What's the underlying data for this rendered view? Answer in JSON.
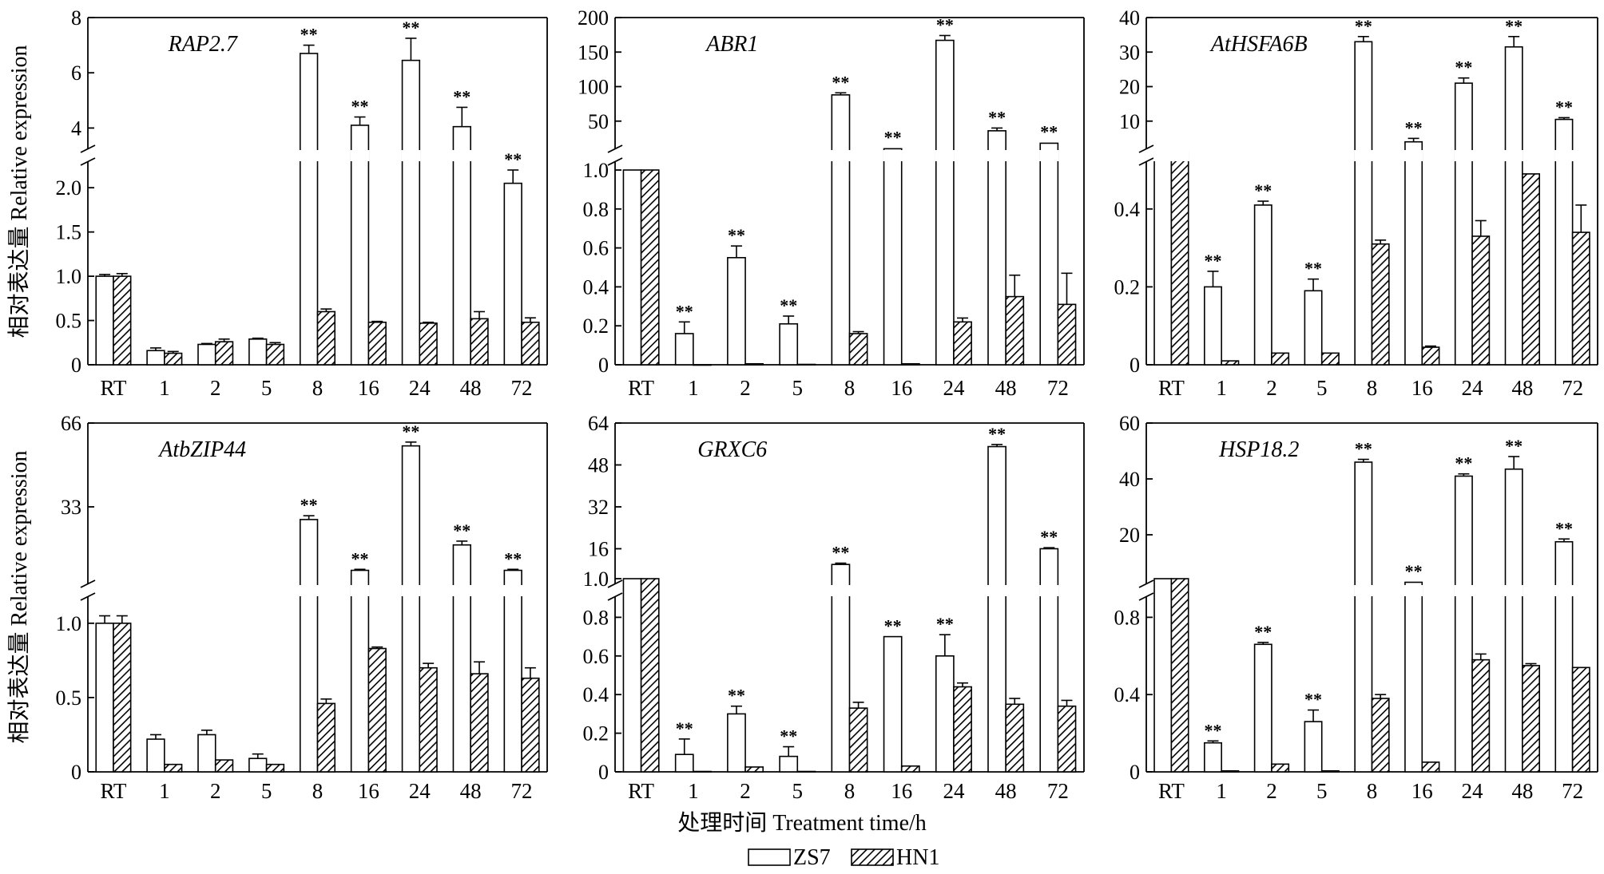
{
  "shared": {
    "ylabel": "相对表达量 Relative expression",
    "xlabel": "处理时间 Treatment time/h",
    "categories": [
      "RT",
      "1",
      "2",
      "5",
      "8",
      "16",
      "24",
      "48",
      "72"
    ],
    "series_names": [
      "ZS7",
      "HN1"
    ],
    "significance_mark": "**",
    "colors": {
      "zs7_fill": "#ffffff",
      "hn1_hatch": "#000000",
      "axis": "#000000"
    }
  },
  "chart_data": [
    {
      "type": "bar",
      "title": "RAP2.7",
      "categories": [
        "RT",
        "1",
        "2",
        "5",
        "8",
        "16",
        "24",
        "48",
        "72"
      ],
      "lower_ylim": [
        0,
        2.2
      ],
      "lower_ticks": [
        0,
        0.5,
        1.0,
        1.5,
        2.0
      ],
      "lower_tick_labels": [
        "0",
        "0.5",
        "1.0",
        "1.5",
        "2.0"
      ],
      "upper_ylim": [
        3,
        8
      ],
      "upper_ticks": [
        4,
        6,
        8
      ],
      "upper_tick_labels": [
        "4",
        "6",
        "8"
      ],
      "series": [
        {
          "name": "ZS7",
          "values": [
            1.0,
            0.16,
            0.23,
            0.29,
            6.7,
            4.1,
            6.45,
            4.05,
            2.05
          ],
          "errors": [
            0.02,
            0.03,
            0.01,
            0.01,
            0.3,
            0.3,
            0.8,
            0.7,
            0.15
          ]
        },
        {
          "name": "HN1",
          "values": [
            1.0,
            0.13,
            0.26,
            0.23,
            0.6,
            0.48,
            0.47,
            0.52,
            0.48
          ],
          "errors": [
            0.03,
            0.02,
            0.03,
            0.02,
            0.03,
            0.01,
            0.01,
            0.08,
            0.05
          ]
        }
      ],
      "significance": [
        "",
        "",
        "",
        "",
        "**",
        "**",
        "**",
        "**",
        "**"
      ]
    },
    {
      "type": "bar",
      "title": "ABR1",
      "categories": [
        "RT",
        "1",
        "2",
        "5",
        "8",
        "16",
        "24",
        "48",
        "72"
      ],
      "lower_ylim": [
        0,
        1.0
      ],
      "lower_ticks": [
        0,
        0.2,
        0.4,
        0.6,
        0.8,
        1.0
      ],
      "lower_tick_labels": [
        "0",
        "0.2",
        "0.4",
        "0.6",
        "0.8",
        "1.0"
      ],
      "upper_ylim": [
        0,
        200
      ],
      "upper_ticks": [
        50,
        100,
        150,
        200
      ],
      "upper_tick_labels": [
        "50",
        "100",
        "150",
        "200"
      ],
      "series": [
        {
          "name": "ZS7",
          "values": [
            1.0,
            0.16,
            0.55,
            0.21,
            88,
            10,
            167,
            36,
            18
          ],
          "errors": [
            0,
            0.06,
            0.06,
            0.04,
            3,
            1,
            7,
            4,
            1
          ]
        },
        {
          "name": "HN1",
          "values": [
            1.0,
            0,
            0.005,
            0.002,
            0.16,
            0.005,
            0.22,
            0.35,
            0.31
          ],
          "errors": [
            0,
            0,
            0,
            0,
            0.01,
            0,
            0.02,
            0.11,
            0.16
          ]
        }
      ],
      "significance": [
        "",
        "**",
        "**",
        "**",
        "**",
        "**",
        "**",
        "**",
        "**"
      ]
    },
    {
      "type": "bar",
      "title": "AtHSFA6B",
      "categories": [
        "RT",
        "1",
        "2",
        "5",
        "8",
        "16",
        "24",
        "48",
        "72"
      ],
      "lower_ylim": [
        0,
        0.5
      ],
      "lower_ticks": [
        0,
        0.2,
        0.4
      ],
      "lower_tick_labels": [
        "0",
        "0.2",
        "0.4"
      ],
      "upper_ylim": [
        0,
        40
      ],
      "upper_ticks": [
        10,
        20,
        30,
        40
      ],
      "upper_tick_labels": [
        "10",
        "20",
        "30",
        "40"
      ],
      "series": [
        {
          "name": "ZS7",
          "values": [
            1.0,
            0.2,
            0.41,
            0.19,
            33,
            4,
            21,
            31.5,
            10.5
          ],
          "errors": [
            0,
            0.04,
            0.01,
            0.03,
            1.5,
            1,
            1.5,
            3,
            0.5
          ]
        },
        {
          "name": "HN1",
          "values": [
            1.0,
            0.01,
            0.03,
            0.03,
            0.31,
            0.045,
            0.33,
            0.49,
            0.34
          ],
          "errors": [
            0,
            0.002,
            0.002,
            0.002,
            0.01,
            0.003,
            0.04,
            0,
            0.07
          ]
        }
      ],
      "significance": [
        "",
        "**",
        "**",
        "**",
        "**",
        "**",
        "**",
        "**",
        "**"
      ]
    },
    {
      "type": "bar",
      "title": "AtbZIP44",
      "categories": [
        "RT",
        "1",
        "2",
        "5",
        "8",
        "16",
        "24",
        "48",
        "72"
      ],
      "lower_ylim": [
        0,
        1.3
      ],
      "lower_ticks": [
        0,
        0.5,
        1.0
      ],
      "lower_tick_labels": [
        "0",
        "0.5",
        "1.0"
      ],
      "upper_ylim": [
        0,
        66
      ],
      "upper_ticks": [
        33,
        66
      ],
      "upper_tick_labels": [
        "33",
        "66"
      ],
      "series": [
        {
          "name": "ZS7",
          "values": [
            1.0,
            0.22,
            0.25,
            0.09,
            28,
            8,
            57,
            18,
            8
          ],
          "errors": [
            0.05,
            0.03,
            0.03,
            0.03,
            1.5,
            0.4,
            1.5,
            1.5,
            0.4
          ]
        },
        {
          "name": "HN1",
          "values": [
            1.0,
            0.05,
            0.08,
            0.05,
            0.46,
            0.83,
            0.7,
            0.66,
            0.63
          ],
          "errors": [
            0.05,
            0.005,
            0.005,
            0.005,
            0.03,
            0.01,
            0.03,
            0.08,
            0.07
          ]
        }
      ],
      "significance": [
        "",
        "",
        "",
        "",
        "**",
        "**",
        "**",
        "**",
        "**"
      ]
    },
    {
      "type": "bar",
      "title": "GRXC6",
      "categories": [
        "RT",
        "1",
        "2",
        "5",
        "8",
        "16",
        "24",
        "48",
        "72"
      ],
      "lower_ylim": [
        0,
        1.0
      ],
      "lower_ticks": [
        0,
        0.2,
        0.4,
        0.6,
        0.8,
        1.0
      ],
      "lower_tick_labels": [
        "0",
        "0.2",
        "0.4",
        "0.6",
        "0.8",
        "1.0"
      ],
      "upper_ylim": [
        0,
        64
      ],
      "upper_ticks": [
        16,
        32,
        48,
        64
      ],
      "upper_tick_labels": [
        "16",
        "32",
        "48",
        "64"
      ],
      "series": [
        {
          "name": "ZS7",
          "values": [
            1.0,
            0.09,
            0.3,
            0.08,
            10,
            0.7,
            0.6,
            55,
            16
          ],
          "errors": [
            0,
            0.08,
            0.04,
            0.05,
            0.5,
            0,
            0.11,
            0.8,
            0.4
          ]
        },
        {
          "name": "HN1",
          "values": [
            1.0,
            0.002,
            0.025,
            0.002,
            0.33,
            0.03,
            0.44,
            0.35,
            0.34
          ],
          "errors": [
            0,
            0,
            0.003,
            0,
            0.03,
            0.003,
            0.02,
            0.03,
            0.03
          ]
        }
      ],
      "significance": [
        "",
        "**",
        "**",
        "**",
        "**",
        "**",
        "**",
        "**",
        "**"
      ]
    },
    {
      "type": "bar",
      "title": "HSP18.2",
      "categories": [
        "RT",
        "1",
        "2",
        "5",
        "8",
        "16",
        "24",
        "48",
        "72"
      ],
      "lower_ylim": [
        0,
        1.0
      ],
      "lower_ticks": [
        0,
        0.4,
        0.8
      ],
      "lower_tick_labels": [
        "0",
        "0.4",
        "0.8"
      ],
      "upper_ylim": [
        0,
        60
      ],
      "upper_ticks": [
        20,
        40,
        60
      ],
      "upper_tick_labels": [
        "20",
        "40",
        "60"
      ],
      "series": [
        {
          "name": "ZS7",
          "values": [
            1.0,
            0.15,
            0.66,
            0.26,
            46,
            3,
            41,
            43.5,
            17.5
          ],
          "errors": [
            0,
            0.01,
            0.01,
            0.06,
            1,
            0.2,
            0.8,
            4.5,
            1
          ]
        },
        {
          "name": "HN1",
          "values": [
            1.0,
            0.005,
            0.04,
            0.005,
            0.38,
            0.05,
            0.58,
            0.55,
            0.54
          ],
          "errors": [
            0,
            0,
            0.003,
            0,
            0.02,
            0.003,
            0.03,
            0.01,
            0
          ]
        }
      ],
      "significance": [
        "",
        "**",
        "**",
        "**",
        "**",
        "**",
        "**",
        "**",
        "**"
      ]
    }
  ]
}
